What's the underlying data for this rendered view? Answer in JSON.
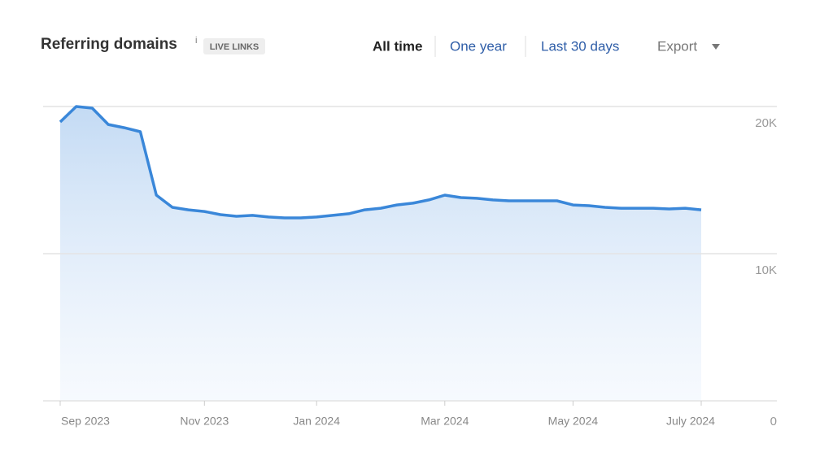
{
  "header": {
    "title": "Referring domains",
    "info": "i",
    "badge": "LIVE LINKS",
    "tabs": [
      "All time",
      "One year",
      "Last 30 days"
    ],
    "export": "Export"
  },
  "chart_data": {
    "type": "area",
    "categories": [
      "Sep 2023",
      null,
      null,
      null,
      null,
      null,
      null,
      null,
      null,
      "Nov 2023",
      null,
      null,
      null,
      null,
      null,
      null,
      "Jan 2024",
      null,
      null,
      null,
      null,
      null,
      null,
      null,
      "Mar 2024",
      null,
      null,
      null,
      null,
      null,
      null,
      null,
      "May 2024",
      null,
      null,
      null,
      null,
      null,
      null,
      null,
      "July 2024"
    ],
    "series": [
      {
        "color": "#3a87d9",
        "values": [
          18950,
          20000,
          19890,
          18780,
          18560,
          18290,
          13980,
          13150,
          12980,
          12870,
          12650,
          12540,
          12600,
          12490,
          12430,
          12430,
          12490,
          12600,
          12710,
          12980,
          13090,
          13310,
          13430,
          13650,
          13980,
          13810,
          13760,
          13650,
          13590,
          13590,
          13590,
          13590,
          13310,
          13260,
          13150,
          13090,
          13090,
          13090,
          13040,
          13090,
          12980
        ]
      }
    ],
    "ylim": [
      0,
      20000
    ],
    "yticks": [
      0,
      {
        "value": 10000,
        "label": "10K"
      },
      {
        "value": 20000,
        "label": "20K"
      }
    ],
    "grid": true
  }
}
